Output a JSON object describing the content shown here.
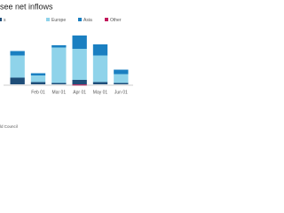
{
  "chart_data": {
    "type": "stacked-bar",
    "title": "see net inflows",
    "categories": [
      null,
      "Feb 01",
      "Mar 01",
      "Apr 01",
      "May 01",
      "Jun 01"
    ],
    "series": [
      {
        "name": "s",
        "color": "#1f4e79",
        "values": [
          1.5,
          0.5,
          0.3,
          1,
          0.5,
          0.3
        ]
      },
      {
        "name": "Europe",
        "color": "#8fd3ea",
        "values": [
          5,
          1.5,
          8,
          7,
          6,
          2
        ]
      },
      {
        "name": "Asia",
        "color": "#1a7fc1",
        "values": [
          1,
          0.5,
          0.5,
          3,
          2.5,
          1
        ]
      },
      {
        "name": "Other",
        "color": "#c2185b",
        "values": [
          0,
          0,
          0,
          -0.3,
          0,
          0
        ]
      }
    ],
    "ylim": [
      -1,
      13
    ],
    "source": "ld Council"
  }
}
